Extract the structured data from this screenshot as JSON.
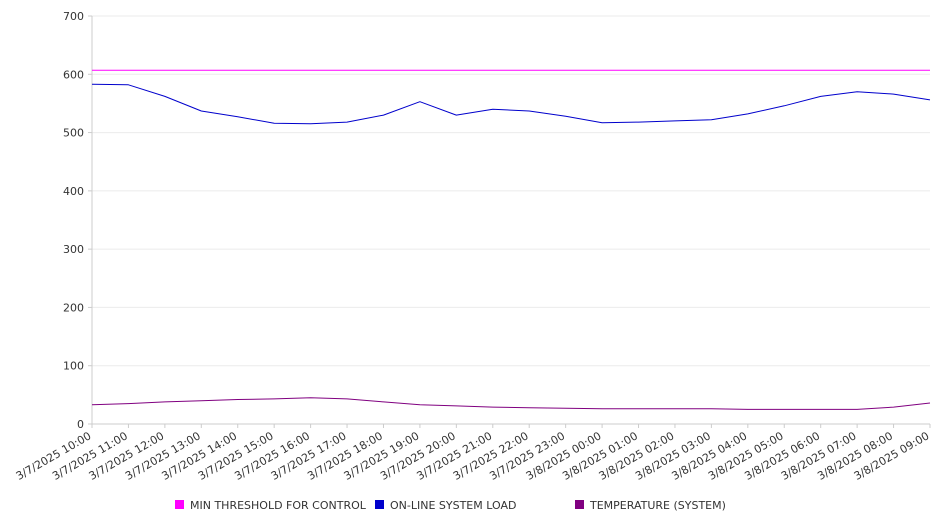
{
  "chart_data": {
    "type": "line",
    "title": "",
    "xlabel": "",
    "ylabel": "",
    "ylim": [
      0,
      700
    ],
    "yticks": [
      0,
      100,
      200,
      300,
      400,
      500,
      600,
      700
    ],
    "grid": "horizontal",
    "legend_position": "bottom",
    "x": [
      "3/7/2025 10:00",
      "3/7/2025 11:00",
      "3/7/2025 12:00",
      "3/7/2025 13:00",
      "3/7/2025 14:00",
      "3/7/2025 15:00",
      "3/7/2025 16:00",
      "3/7/2025 17:00",
      "3/7/2025 18:00",
      "3/7/2025 19:00",
      "3/7/2025 20:00",
      "3/7/2025 21:00",
      "3/7/2025 22:00",
      "3/7/2025 23:00",
      "3/8/2025 00:00",
      "3/8/2025 01:00",
      "3/8/2025 02:00",
      "3/8/2025 03:00",
      "3/8/2025 04:00",
      "3/8/2025 05:00",
      "3/8/2025 06:00",
      "3/8/2025 07:00",
      "3/8/2025 08:00",
      "3/8/2025 09:00"
    ],
    "series": [
      {
        "name": "MIN THRESHOLD FOR CONTROL",
        "color": "#ff00ff",
        "values": [
          607,
          607,
          607,
          607,
          607,
          607,
          607,
          607,
          607,
          607,
          607,
          607,
          607,
          607,
          607,
          607,
          607,
          607,
          607,
          607,
          607,
          607,
          607,
          607
        ]
      },
      {
        "name": "ON-LINE SYSTEM LOAD",
        "color": "#0000cc",
        "values": [
          583,
          582,
          562,
          537,
          527,
          516,
          515,
          518,
          530,
          553,
          530,
          540,
          537,
          528,
          517,
          518,
          520,
          522,
          532,
          546,
          562,
          570,
          566,
          556
        ]
      },
      {
        "name": "TEMPERATURE (SYSTEM)",
        "color": "#800080",
        "values": [
          33,
          35,
          38,
          40,
          42,
          43,
          45,
          43,
          38,
          33,
          31,
          29,
          28,
          27,
          26,
          26,
          26,
          26,
          25,
          25,
          25,
          25,
          29,
          36
        ]
      }
    ]
  }
}
